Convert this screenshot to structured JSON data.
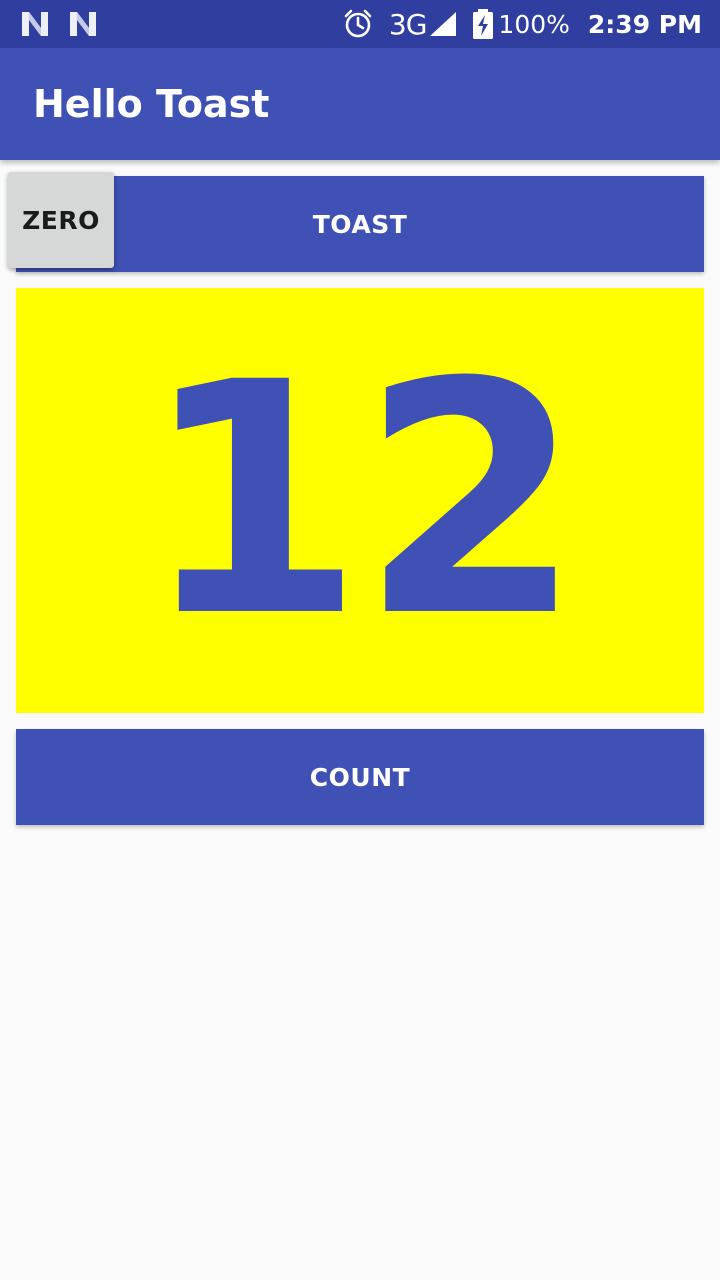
{
  "status_bar": {
    "left_icons": [
      "notification-n-icon",
      "notification-n-icon"
    ],
    "alarm_icon": "alarm-clock-icon",
    "network_type": "3G",
    "signal_icon": "cell-signal-icon",
    "battery_icon": "battery-charging-icon",
    "battery_level": "100%",
    "time": "2:39 PM"
  },
  "app_bar": {
    "title": "Hello Toast"
  },
  "buttons": {
    "toast_label": "TOAST",
    "zero_label": "ZERO",
    "count_label": "COUNT"
  },
  "counter": {
    "value": "12"
  },
  "colors": {
    "primary": "#3f51b5",
    "primary_dark": "#303f9f",
    "count_background": "#ffff00",
    "zero_button": "#d6d7d7"
  }
}
